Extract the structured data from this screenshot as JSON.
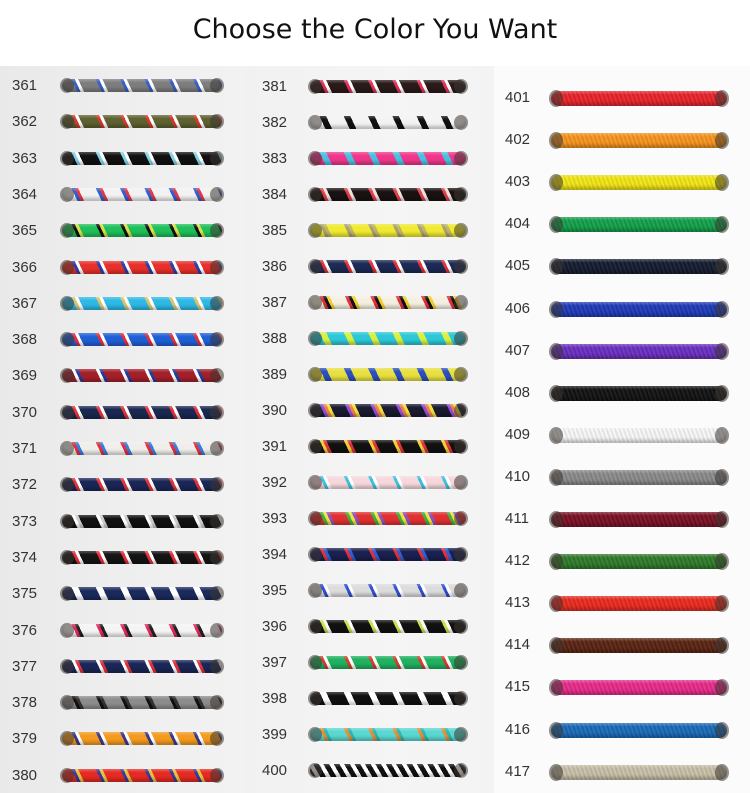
{
  "title": "Choose the Color You Want",
  "columns": [
    [
      {
        "code": "361",
        "base": "#7d7d7d",
        "accent": [
          "#3b5fc0",
          "#ffffff"
        ]
      },
      {
        "code": "362",
        "base": "#5e6131",
        "accent": [
          "#d23a2a",
          "#ffffff"
        ]
      },
      {
        "code": "363",
        "base": "#111111",
        "accent": [
          "#7fd3e6",
          "#ffffff"
        ]
      },
      {
        "code": "364",
        "base": "#f2f2f2",
        "accent": [
          "#2f5fd0",
          "#e0374a"
        ]
      },
      {
        "code": "365",
        "base": "#1fbf5a",
        "accent": [
          "#111111",
          "#d8e04a"
        ]
      },
      {
        "code": "366",
        "base": "#e8302a",
        "accent": [
          "#2c3fa8",
          "#ffffff"
        ]
      },
      {
        "code": "367",
        "base": "#2eb8e6",
        "accent": [
          "#d9c36a",
          "#ffffff"
        ]
      },
      {
        "code": "368",
        "base": "#1f5fd6",
        "accent": [
          "#e0303a",
          "#ffffff"
        ]
      },
      {
        "code": "369",
        "base": "#a3202a",
        "accent": [
          "#ffffff",
          "#2a3a9a"
        ]
      },
      {
        "code": "370",
        "base": "#1a2850",
        "accent": [
          "#e0303a",
          "#ffffff"
        ]
      },
      {
        "code": "371",
        "base": "#f0eeea",
        "accent": [
          "#e0303a",
          "#3a7be0"
        ]
      },
      {
        "code": "372",
        "base": "#1a2656",
        "accent": [
          "#e0303a",
          "#ffffff"
        ]
      },
      {
        "code": "373",
        "base": "#111111",
        "accent": [
          "#ffffff",
          "#cccccc"
        ]
      },
      {
        "code": "374",
        "base": "#141414",
        "accent": [
          "#e0303a",
          "#ffffff"
        ]
      },
      {
        "code": "375",
        "base": "#1a2a5c",
        "accent": [
          "#ffffff",
          "#ffffff"
        ]
      },
      {
        "code": "376",
        "base": "#f4f4f4",
        "accent": [
          "#e02a5a",
          "#222222"
        ]
      },
      {
        "code": "377",
        "base": "#1a2656",
        "accent": [
          "#ffffff",
          "#e0303a"
        ]
      },
      {
        "code": "378",
        "base": "#8c8c8c",
        "accent": [
          "#111111",
          "#333333"
        ]
      },
      {
        "code": "379",
        "base": "#f39a1f",
        "accent": [
          "#3a3a8a",
          "#ffffff"
        ]
      },
      {
        "code": "380",
        "base": "#e52a22",
        "accent": [
          "#3a3a9a",
          "#e8c040"
        ]
      }
    ],
    [
      {
        "code": "381",
        "base": "#2a1a1a",
        "accent": [
          "#e0305a",
          "#ffffff"
        ]
      },
      {
        "code": "382",
        "base": "#f3f3f3",
        "accent": [
          "#111111",
          "#111111"
        ]
      },
      {
        "code": "383",
        "base": "#f0368a",
        "accent": [
          "#4ac0e0",
          "#4ac0e0"
        ]
      },
      {
        "code": "384",
        "base": "#1a1212",
        "accent": [
          "#e0404a",
          "#f0e0e0"
        ]
      },
      {
        "code": "385",
        "base": "#f0ea30",
        "accent": [
          "#a8a070",
          "#c0b860"
        ]
      },
      {
        "code": "386",
        "base": "#1c2a55",
        "accent": [
          "#e0303a",
          "#ffffff"
        ]
      },
      {
        "code": "387",
        "base": "#f4efe0",
        "accent": [
          "#e0303a",
          "#111111",
          "#f0d030"
        ]
      },
      {
        "code": "388",
        "base": "#2cc8d8",
        "accent": [
          "#d8f040",
          "#d8f040"
        ]
      },
      {
        "code": "389",
        "base": "#e8e040",
        "accent": [
          "#2a4fc0",
          "#2a4fc0"
        ]
      },
      {
        "code": "390",
        "base": "#1a1a30",
        "accent": [
          "#8a4fd8",
          "#f08040",
          "#f0e040"
        ]
      },
      {
        "code": "391",
        "base": "#111111",
        "accent": [
          "#f0d030",
          "#e0303a"
        ]
      },
      {
        "code": "392",
        "base": "#f6d8dc",
        "accent": [
          "#40c0e0",
          "#ffffff"
        ]
      },
      {
        "code": "393",
        "base": "#e03030",
        "accent": [
          "#40b040",
          "#f0e040",
          "#9050c0"
        ]
      },
      {
        "code": "394",
        "base": "#1a2050",
        "accent": [
          "#e0303a",
          "#2a60d0"
        ]
      },
      {
        "code": "395",
        "base": "#dcdcdc",
        "accent": [
          "#3050d0",
          "#ffffff"
        ]
      },
      {
        "code": "396",
        "base": "#111111",
        "accent": [
          "#c8e050",
          "#ffffff"
        ]
      },
      {
        "code": "397",
        "base": "#20b060",
        "accent": [
          "#d04030",
          "#ffffff"
        ]
      },
      {
        "code": "398",
        "base": "#111111",
        "accent": [
          "#ffffff",
          "#ffffff"
        ]
      },
      {
        "code": "399",
        "base": "#5ad8d0",
        "accent": [
          "#f08a30",
          "#2ab8b0"
        ]
      },
      {
        "code": "400",
        "base": "#111111",
        "accent": [
          "#ffffff",
          "#ffffff"
        ]
      }
    ],
    [
      {
        "code": "401",
        "base": "#e8232a"
      },
      {
        "code": "402",
        "base": "#f7941d"
      },
      {
        "code": "403",
        "base": "#f2e614"
      },
      {
        "code": "404",
        "base": "#12a04a"
      },
      {
        "code": "405",
        "base": "#141c30"
      },
      {
        "code": "406",
        "base": "#1e3bb8"
      },
      {
        "code": "407",
        "base": "#6a2fc0"
      },
      {
        "code": "408",
        "base": "#121212"
      },
      {
        "code": "409",
        "base": "#f6f6f6"
      },
      {
        "code": "410",
        "base": "#8a8a8a"
      },
      {
        "code": "411",
        "base": "#7a1024"
      },
      {
        "code": "412",
        "base": "#2f7a2a"
      },
      {
        "code": "413",
        "base": "#ea2a1e"
      },
      {
        "code": "414",
        "base": "#5a2412"
      },
      {
        "code": "415",
        "base": "#e82a8a"
      },
      {
        "code": "416",
        "base": "#1a6ab8"
      },
      {
        "code": "417",
        "base": "#c8bfa8"
      }
    ]
  ]
}
